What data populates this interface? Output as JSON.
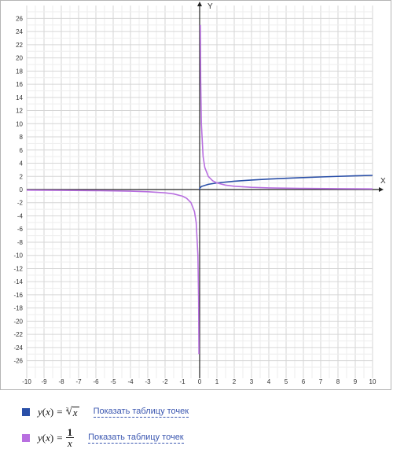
{
  "chart_data": {
    "type": "line",
    "xlabel": "X",
    "ylabel": "Y",
    "xlim": [
      -10,
      10
    ],
    "ylim": [
      -27,
      27
    ],
    "x_ticks": [
      -10,
      -9,
      -8,
      -7,
      -6,
      -5,
      -4,
      -3,
      -2,
      -1,
      0,
      1,
      2,
      3,
      4,
      5,
      6,
      7,
      8,
      9,
      10
    ],
    "y_ticks": [
      -26,
      -24,
      -22,
      -20,
      -18,
      -16,
      -14,
      -12,
      -10,
      -8,
      -6,
      -4,
      -2,
      0,
      2,
      4,
      6,
      8,
      10,
      12,
      14,
      16,
      18,
      20,
      22,
      24,
      26
    ],
    "grid": true,
    "series": [
      {
        "function": "cbrt",
        "color": "#2a4fa8",
        "x": [
          0,
          0.01,
          0.1,
          0.5,
          1,
          2,
          3,
          4,
          5,
          6,
          7,
          8,
          9,
          10
        ],
        "y": [
          0,
          0.22,
          0.46,
          0.79,
          1.0,
          1.26,
          1.44,
          1.59,
          1.71,
          1.82,
          1.91,
          2.0,
          2.08,
          2.15
        ]
      },
      {
        "function": "reciprocal",
        "color": "#b86fe0",
        "x": [
          -10,
          -8,
          -6,
          -4,
          -3,
          -2,
          -1.5,
          -1,
          -0.75,
          -0.5,
          -0.3,
          -0.2,
          -0.1,
          -0.06,
          -0.04,
          0.04,
          0.06,
          0.1,
          0.2,
          0.3,
          0.5,
          0.75,
          1,
          1.5,
          2,
          3,
          4,
          6,
          8,
          10
        ],
        "y": [
          -0.1,
          -0.125,
          -0.167,
          -0.25,
          -0.333,
          -0.5,
          -0.667,
          -1,
          -1.333,
          -2,
          -3.333,
          -5,
          -10,
          -16.67,
          -25,
          25,
          16.67,
          10,
          5,
          3.333,
          2,
          1.333,
          1,
          0.667,
          0.5,
          0.333,
          0.25,
          0.167,
          0.125,
          0.1
        ]
      }
    ]
  },
  "legend": [
    {
      "color": "#2a4fa8",
      "lhs": "y",
      "arg": "x",
      "root_index": "3",
      "radicand": "x",
      "link_text": "Показать таблицу точек"
    },
    {
      "color": "#b86fe0",
      "lhs": "y",
      "arg": "x",
      "numerator": "1",
      "denominator": "x",
      "link_text": "Показать таблицу точек"
    }
  ]
}
